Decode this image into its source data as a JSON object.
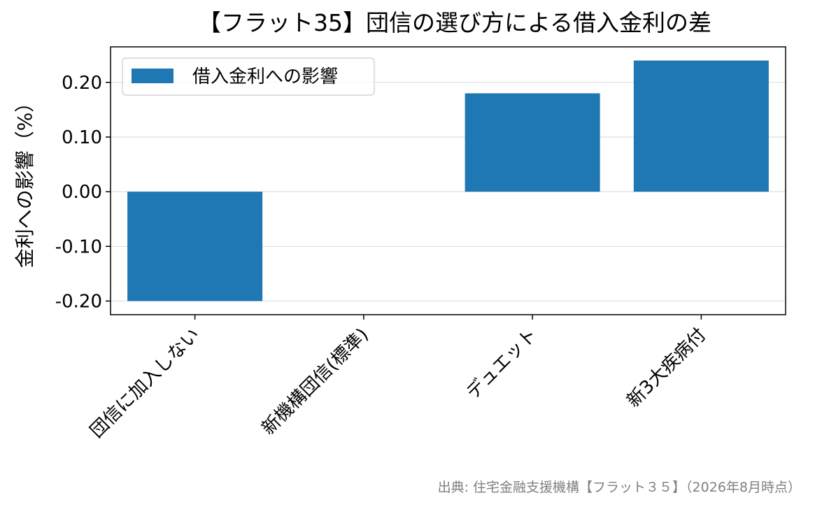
{
  "chart_data": {
    "type": "bar",
    "title": "【フラット35】団信の選び方による借入金利の差",
    "xlabel": "",
    "ylabel": "金利への影響（%）",
    "categories": [
      "団信に加入しない",
      "新機構団信(標準)",
      "デュエット",
      "新3大疾病付"
    ],
    "series": [
      {
        "name": "借入金利への影響",
        "values": [
          -0.2,
          0.0,
          0.18,
          0.24
        ],
        "color": "#1f77b4"
      }
    ],
    "ylim": [
      -0.225,
      0.265
    ],
    "yticks": [
      0.2,
      0.1,
      0.0,
      -0.1,
      -0.2
    ],
    "ytick_labels": [
      "0.20",
      "0.10",
      "0.00",
      "-0.10",
      "-0.20"
    ],
    "grid": "y",
    "legend_position": "top-left"
  },
  "source_note": "出典: 住宅金融支援機構【フラット３５】（2026年8月時点）"
}
